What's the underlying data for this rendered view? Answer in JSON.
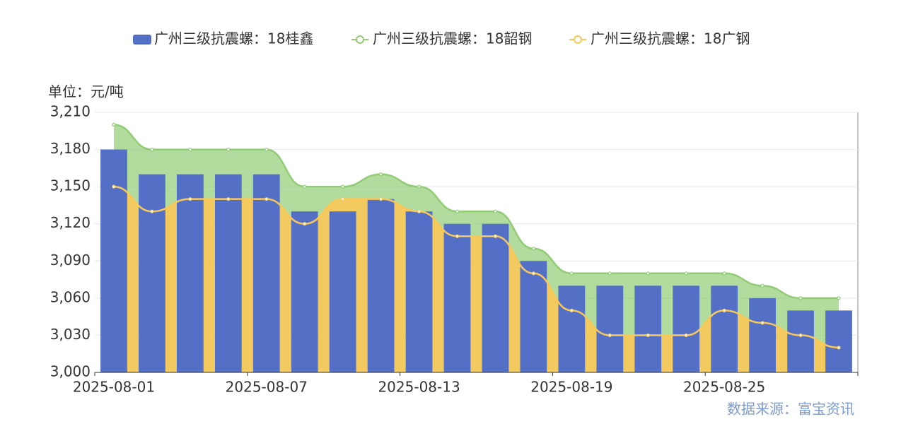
{
  "chart_data": {
    "type": "bar_line",
    "y_axis_name": "单位：元/吨",
    "source": "数据来源：富宝资讯",
    "categories": [
      "2025-08-01",
      null,
      null,
      null,
      "2025-08-07",
      null,
      null,
      null,
      "2025-08-13",
      null,
      null,
      null,
      "2025-08-19",
      null,
      null,
      null,
      "2025-08-25",
      null,
      null,
      null
    ],
    "series": [
      {
        "name": "广州三级抗震螺：18桂鑫",
        "type": "bar",
        "color": "#5470c6",
        "values": [
          3180,
          3160,
          3160,
          3160,
          3160,
          3130,
          3130,
          3140,
          3130,
          3120,
          3120,
          3090,
          3070,
          3070,
          3070,
          3070,
          3070,
          3060,
          3050,
          3050
        ]
      },
      {
        "name": "广州三级抗震螺：18韶钢",
        "type": "line",
        "color": "#91cc75",
        "values": [
          3200,
          3180,
          3180,
          3180,
          3180,
          3150,
          3150,
          3160,
          3150,
          3130,
          3130,
          3100,
          3080,
          3080,
          3080,
          3080,
          3080,
          3070,
          3060,
          3060
        ]
      },
      {
        "name": "广州三级抗震螺：18广钢",
        "type": "line",
        "color": "#fac858",
        "values": [
          3150,
          3130,
          3140,
          3140,
          3140,
          3120,
          3140,
          3140,
          3130,
          3110,
          3110,
          3080,
          3050,
          3030,
          3030,
          3030,
          3050,
          3040,
          3030,
          3020
        ]
      }
    ],
    "ylim": [
      3000,
      3210
    ],
    "yticks": [
      {
        "value": 3000,
        "label": "3,000"
      },
      {
        "value": 3030,
        "label": "3,030"
      },
      {
        "value": 3060,
        "label": "3,060"
      },
      {
        "value": 3090,
        "label": "3,090"
      },
      {
        "value": 3120,
        "label": "3,120"
      },
      {
        "value": 3150,
        "label": "3,150"
      },
      {
        "value": 3180,
        "label": "3,180"
      },
      {
        "value": 3210,
        "label": "3,210"
      }
    ],
    "grid": true
  }
}
